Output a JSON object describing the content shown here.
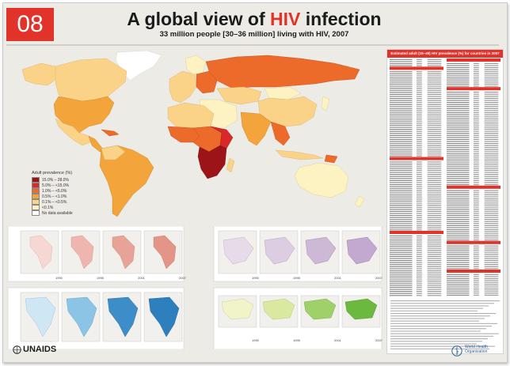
{
  "header": {
    "number": "08",
    "title_before": "A global view of ",
    "title_highlight": "HIV",
    "title_after": " infection",
    "subtitle": "33 million people [30–36 million] living with HIV, 2007"
  },
  "legend": {
    "title": "Adult prevalence (%)",
    "items": [
      {
        "label": "15.0% – 28.0%",
        "color": "#9c1418"
      },
      {
        "label": "5.0% – <15.0%",
        "color": "#d8282a"
      },
      {
        "label": "1.0% – <5.0%",
        "color": "#ec6a2a"
      },
      {
        "label": "0.5% – <1.0%",
        "color": "#f3a43a"
      },
      {
        "label": "0.1% – <0.5%",
        "color": "#fad388"
      },
      {
        "label": "<0.1%",
        "color": "#fdf3c2"
      },
      {
        "label": "No data available",
        "color": "#ffffff"
      }
    ]
  },
  "colors": {
    "ocean": "#ecebe6",
    "accent": "#e2332b",
    "panel_small_ocean": "#ffffff"
  },
  "small_maps": {
    "years": [
      "1990",
      "1995",
      "2001",
      "2007"
    ]
  },
  "right_panel": {
    "header": "Estimated adult (15–49) HIV prevalence (%) for countries in 2007"
  },
  "logos": {
    "unaids": "UNAIDS",
    "who_line1": "World Health",
    "who_line2": "Organization"
  }
}
